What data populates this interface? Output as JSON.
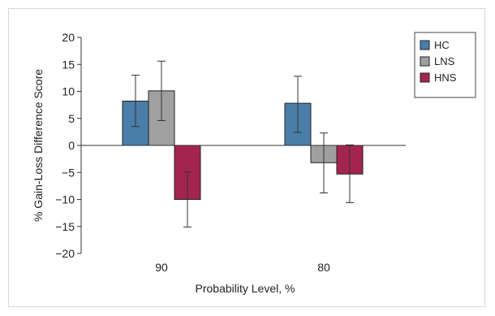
{
  "chart_data": {
    "type": "bar",
    "title": "",
    "xlabel": "Probability Level, %",
    "ylabel": "% Gain-Loss Difference Score",
    "categories": [
      "90",
      "80"
    ],
    "ylim": [
      -20,
      20
    ],
    "yticks": [
      20,
      15,
      10,
      5,
      0,
      -5,
      -10,
      -15,
      -20
    ],
    "ytick_labels": [
      "20",
      "15",
      "10",
      "5",
      "0",
      "−5",
      "−10",
      "−15",
      "−20"
    ],
    "series": [
      {
        "name": "HC",
        "color": "#4a7ea8",
        "values": [
          8.2,
          7.8
        ],
        "error_low": [
          3.5,
          2.4
        ],
        "error_high": [
          13.0,
          12.8
        ]
      },
      {
        "name": "LNS",
        "color": "#a0a0a0",
        "values": [
          10.1,
          -3.2
        ],
        "error_low": [
          4.6,
          -8.8
        ],
        "error_high": [
          15.6,
          2.3
        ]
      },
      {
        "name": "HNS",
        "color": "#a3254f",
        "values": [
          -10.0,
          -5.3
        ],
        "error_low": [
          -15.1,
          -10.6
        ],
        "error_high": [
          -4.9,
          0.1
        ]
      }
    ],
    "legend_position": "top-right",
    "grid": false
  }
}
